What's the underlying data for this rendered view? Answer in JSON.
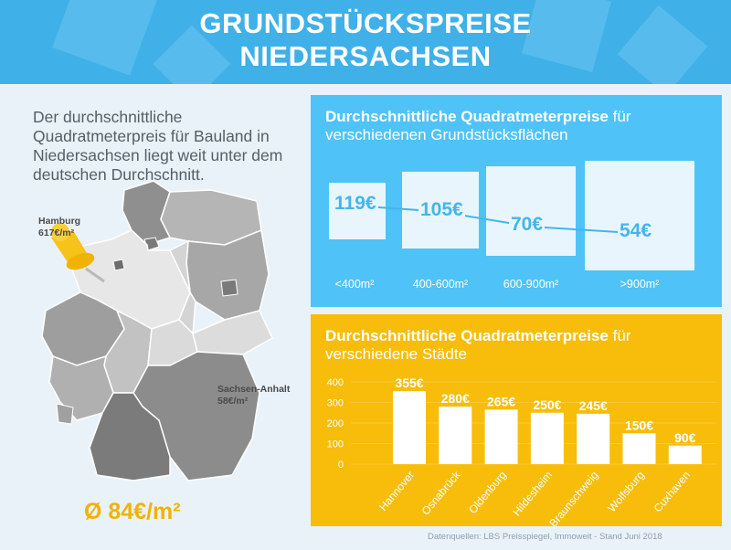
{
  "header": {
    "title_line1": "GRUNDSTÜCKSPREISE",
    "title_line2": "NIEDERSACHSEN",
    "color": "#3fb0e8"
  },
  "intro_text": "Der durchschnittliche Quadratmeterpreis für Bauland in Niedersachsen liegt weit unter dem deutschen Durchschnitt.",
  "map": {
    "hamburg_name": "Hamburg",
    "hamburg_price": "617€/m²",
    "sachsen_anhalt_name": "Sachsen-Anhalt",
    "sachsen_anhalt_price": "58€/m²",
    "average": "Ø 84€/m²",
    "pin_color": "#f7c21a",
    "highlight_color": "#f0b400"
  },
  "panel_area": {
    "title_bold": "Durchschnittliche Quadratmeterpreise",
    "title_rest": " für verschiedenen Grundstücksflächen",
    "color": "#4fc3f7"
  },
  "panel_city": {
    "title_bold": "Durchschnittliche Quadratmeterpreise",
    "title_rest": " für verschiedene Städte",
    "color": "#f7bd0a"
  },
  "source": "Datenquellen: LBS Preisspiegel, Immoweit - Stand Juni 2018",
  "chart_data": [
    {
      "type": "line",
      "title": "Durchschnittliche Quadratmeterpreise für verschiedenen Grundstücksflächen",
      "categories": [
        "<400m²",
        "400-600m²",
        "600-900m²",
        ">900m²"
      ],
      "values": [
        119,
        105,
        70,
        54
      ],
      "value_labels": [
        "119€",
        "105€",
        "70€",
        "54€"
      ]
    },
    {
      "type": "bar",
      "title": "Durchschnittliche Quadratmeterpreise für verschiedene Städte",
      "categories": [
        "Hannover",
        "Osnabrück",
        "Oldenburg",
        "Hildesheim",
        "Braunschweig",
        "Wolfsburg",
        "Cuxhaven"
      ],
      "values": [
        355,
        280,
        265,
        250,
        245,
        150,
        90
      ],
      "value_labels": [
        "355€",
        "280€",
        "265€",
        "250€",
        "245€",
        "150€",
        "90€"
      ],
      "y_ticks": [
        0,
        100,
        200,
        300,
        400
      ],
      "ylim": [
        0,
        400
      ],
      "bar_color": "#ffffff"
    }
  ]
}
